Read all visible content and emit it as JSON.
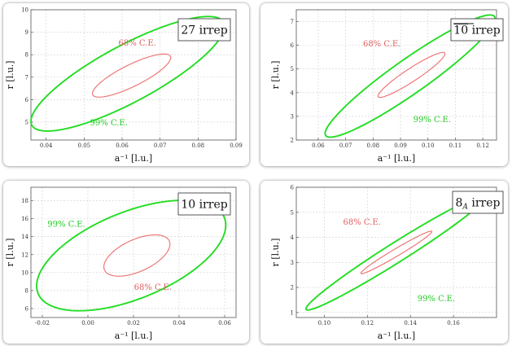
{
  "panels": [
    {
      "irrep_label": "27 irrep",
      "irrep_overline": "",
      "irrep_sub": "",
      "chart_data": {
        "type": "line",
        "title": "",
        "xlabel": "a⁻¹ [l.u.]",
        "ylabel": "r [l.u.]",
        "xlim": [
          0.036,
          0.09
        ],
        "ylim": [
          4.2,
          10
        ],
        "xticks": [
          "0.04",
          "0.05",
          "0.06",
          "0.07",
          "0.08",
          "0.09"
        ],
        "xtick_values": [
          0.04,
          0.05,
          0.06,
          0.07,
          0.08,
          0.09
        ],
        "yticks": [
          "5",
          "6",
          "7",
          "8",
          "9",
          "10"
        ],
        "ytick_values": [
          5,
          6,
          7,
          8,
          9,
          10
        ],
        "grid": true,
        "series": [
          {
            "name": "99% C.E.",
            "color": "#22dd22",
            "ellipse": {
              "center": [
                0.0615,
                7.15
              ],
              "semi_x": 0.0255,
              "semi_y": 2.55,
              "corr": -0.83
            }
          },
          {
            "name": "68% C.E.",
            "color": "#ee7777",
            "ellipse": {
              "center": [
                0.0625,
                7.07
              ],
              "semi_x": 0.0103,
              "semi_y": 0.96,
              "corr": -0.83
            }
          }
        ],
        "annotations": [
          {
            "text": "68% C.E.",
            "x": 0.064,
            "y": 8.4,
            "color": "#e06060"
          },
          {
            "text": "99% C.E.",
            "x": 0.0565,
            "y": 4.85,
            "color": "#22cc22"
          }
        ]
      }
    },
    {
      "irrep_label": " irrep",
      "irrep_overline": "10",
      "irrep_sub": "",
      "chart_data": {
        "type": "line",
        "title": "",
        "xlabel": "a⁻¹ [l.u.]",
        "ylabel": "r [l.u.]",
        "xlim": [
          0.052,
          0.125
        ],
        "ylim": [
          2,
          7.5
        ],
        "xticks": [
          "0.06",
          "0.07",
          "0.08",
          "0.09",
          "0.10",
          "0.11",
          "0.12"
        ],
        "xtick_values": [
          0.06,
          0.07,
          0.08,
          0.09,
          0.1,
          0.11,
          0.12
        ],
        "yticks": [
          "2",
          "3",
          "4",
          "5",
          "6",
          "7"
        ],
        "ytick_values": [
          2,
          3,
          4,
          5,
          6,
          7
        ],
        "grid": true,
        "series": [
          {
            "name": "99% C.E.",
            "color": "#22dd22",
            "ellipse": {
              "center": [
                0.0935,
                4.7
              ],
              "semi_x": 0.031,
              "semi_y": 2.58,
              "corr": -0.94
            }
          },
          {
            "name": "68% C.E.",
            "color": "#ee7777",
            "ellipse": {
              "center": [
                0.094,
                4.75
              ],
              "semi_x": 0.0122,
              "semi_y": 0.95,
              "corr": -0.94
            }
          }
        ],
        "annotations": [
          {
            "text": "68% C.E.",
            "x": 0.0832,
            "y": 5.95,
            "color": "#e06060"
          },
          {
            "text": "99% C.E.",
            "x": 0.1015,
            "y": 2.75,
            "color": "#22cc22"
          }
        ]
      }
    },
    {
      "irrep_label": "10 irrep",
      "irrep_overline": "",
      "irrep_sub": "",
      "chart_data": {
        "type": "line",
        "title": "",
        "xlabel": "a⁻¹ [l.u.]",
        "ylabel": "r [l.u.]",
        "xlim": [
          -0.025,
          0.065
        ],
        "ylim": [
          5,
          19.5
        ],
        "xticks": [
          "-0.02",
          "0.00",
          "0.02",
          "0.04",
          "0.06"
        ],
        "xtick_values": [
          -0.02,
          0.0,
          0.02,
          0.04,
          0.06
        ],
        "yticks": [
          "6",
          "8",
          "10",
          "12",
          "14",
          "16",
          "18"
        ],
        "ytick_values": [
          6,
          8,
          10,
          12,
          14,
          16,
          18
        ],
        "grid": true,
        "series": [
          {
            "name": "99% C.E.",
            "color": "#22dd22",
            "ellipse": {
              "center": [
                0.019,
                11.9
              ],
              "semi_x": 0.0415,
              "semi_y": 6.15,
              "corr": -0.55
            }
          },
          {
            "name": "68% C.E.",
            "color": "#ee7777",
            "ellipse": {
              "center": [
                0.0215,
                11.9
              ],
              "semi_x": 0.0145,
              "semi_y": 2.3,
              "corr": -0.55
            }
          }
        ],
        "annotations": [
          {
            "text": "99% C.E.",
            "x": -0.0095,
            "y": 15.1,
            "color": "#22cc22"
          },
          {
            "text": "68% C.E.",
            "x": 0.0285,
            "y": 8.1,
            "color": "#e06060"
          }
        ]
      }
    },
    {
      "irrep_label": " irrep",
      "irrep_overline": "",
      "irrep_base": "8",
      "irrep_sub": "A",
      "chart_data": {
        "type": "line",
        "title": "",
        "xlabel": "a⁻¹ [l.u.]",
        "ylabel": "r [l.u.]",
        "xlim": [
          0.087,
          0.18
        ],
        "ylim": [
          0.8,
          6
        ],
        "xticks": [
          "0.10",
          "0.12",
          "0.14",
          "0.16"
        ],
        "xtick_values": [
          0.1,
          0.12,
          0.14,
          0.16
        ],
        "yticks": [
          "1",
          "2",
          "3",
          "4",
          "5",
          "6"
        ],
        "ytick_values": [
          1,
          2,
          3,
          4,
          5,
          6
        ],
        "grid": true,
        "series": [
          {
            "name": "99% C.E.",
            "color": "#22dd22",
            "ellipse": {
              "center": [
                0.1335,
                3.4
              ],
              "semi_x": 0.042,
              "semi_y": 2.3,
              "corr": -0.98
            }
          },
          {
            "name": "68% C.E.",
            "color": "#ee7777",
            "ellipse": {
              "center": [
                0.1335,
                3.4
              ],
              "semi_x": 0.0165,
              "semi_y": 0.85,
              "corr": -0.98
            }
          }
        ],
        "annotations": [
          {
            "text": "68% C.E.",
            "x": 0.1175,
            "y": 4.5,
            "color": "#e06060"
          },
          {
            "text": "99% C.E.",
            "x": 0.152,
            "y": 1.45,
            "color": "#22cc22"
          }
        ]
      }
    }
  ]
}
